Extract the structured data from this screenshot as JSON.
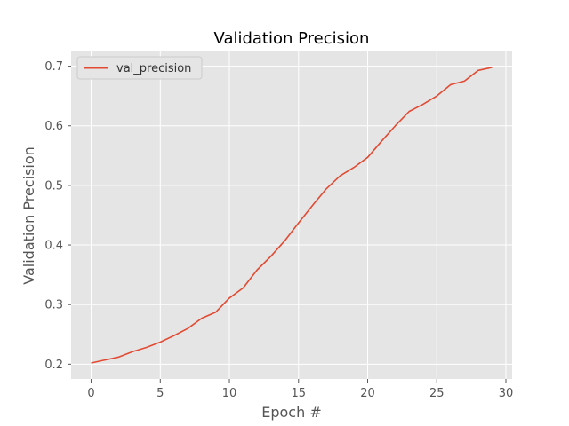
{
  "chart_data": {
    "type": "line",
    "title": "Validation Precision",
    "xlabel": "Epoch #",
    "ylabel": "Validation Precision",
    "xlim": [
      -1.45,
      30.45
    ],
    "ylim": [
      0.1752,
      0.7247
    ],
    "xticks": [
      0,
      5,
      10,
      15,
      20,
      25,
      30
    ],
    "yticks": [
      0.2,
      0.3,
      0.4,
      0.5,
      0.6,
      0.7
    ],
    "xtick_labels": [
      "0",
      "5",
      "10",
      "15",
      "20",
      "25",
      "30"
    ],
    "ytick_labels": [
      "0.2",
      "0.3",
      "0.4",
      "0.5",
      "0.6",
      "0.7"
    ],
    "grid": true,
    "legend_position": "top-left",
    "series": [
      {
        "name": "val_precision",
        "color": "#e24a33",
        "x": [
          0,
          1,
          2,
          3,
          4,
          5,
          6,
          7,
          8,
          9,
          10,
          11,
          12,
          13,
          14,
          15,
          16,
          17,
          18,
          19,
          20,
          21,
          22,
          23,
          24,
          25,
          26,
          27,
          28,
          29
        ],
        "values": [
          0.202,
          0.207,
          0.212,
          0.221,
          0.228,
          0.237,
          0.248,
          0.26,
          0.277,
          0.287,
          0.311,
          0.328,
          0.358,
          0.381,
          0.407,
          0.437,
          0.466,
          0.494,
          0.516,
          0.53,
          0.547,
          0.574,
          0.6,
          0.624,
          0.636,
          0.65,
          0.669,
          0.675,
          0.693,
          0.698
        ]
      }
    ]
  }
}
